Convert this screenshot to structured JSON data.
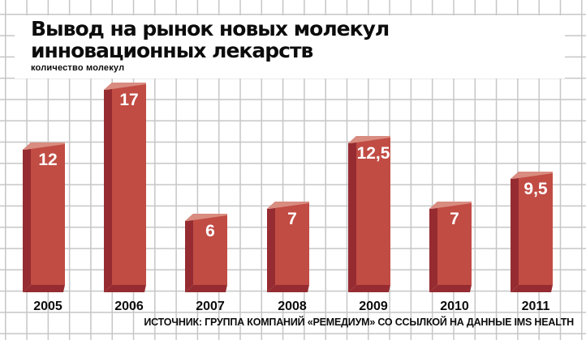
{
  "title": {
    "line1": "Вывод на рынок новых молекул",
    "line2": "инновационных лекарств"
  },
  "axis_label": "количество молекул",
  "source": {
    "text": "ИСТОЧНИК: ГРУППА КОМПАНИЙ «РЕМЕДИУМ» СО ССЫЛКОЙ НА ДАННЫЕ IMS HEALTH"
  },
  "colors": {
    "bar_face": "#c14c44",
    "bar_side": "#962c31",
    "bar_bevel": "#d98c80",
    "value_text": "#ffffff",
    "year_text": "#0c0c0c",
    "grid_line": "#c6c6c6",
    "background": "#ffffff"
  },
  "chart_data": {
    "type": "bar",
    "title": "Вывод на рынок новых молекул инновационных лекарств",
    "ylabel": "количество молекул",
    "categories": [
      "2005",
      "2006",
      "2007",
      "2008",
      "2009",
      "2010",
      "2011"
    ],
    "values": [
      12,
      17,
      6,
      7,
      12.5,
      7,
      9.5
    ],
    "value_labels": [
      "12",
      "17",
      "6",
      "7",
      "12,5",
      "7",
      "9,5"
    ],
    "ylim": [
      0,
      17.5
    ],
    "grid": true,
    "legend": false,
    "bar_style": "3d-bevel"
  }
}
